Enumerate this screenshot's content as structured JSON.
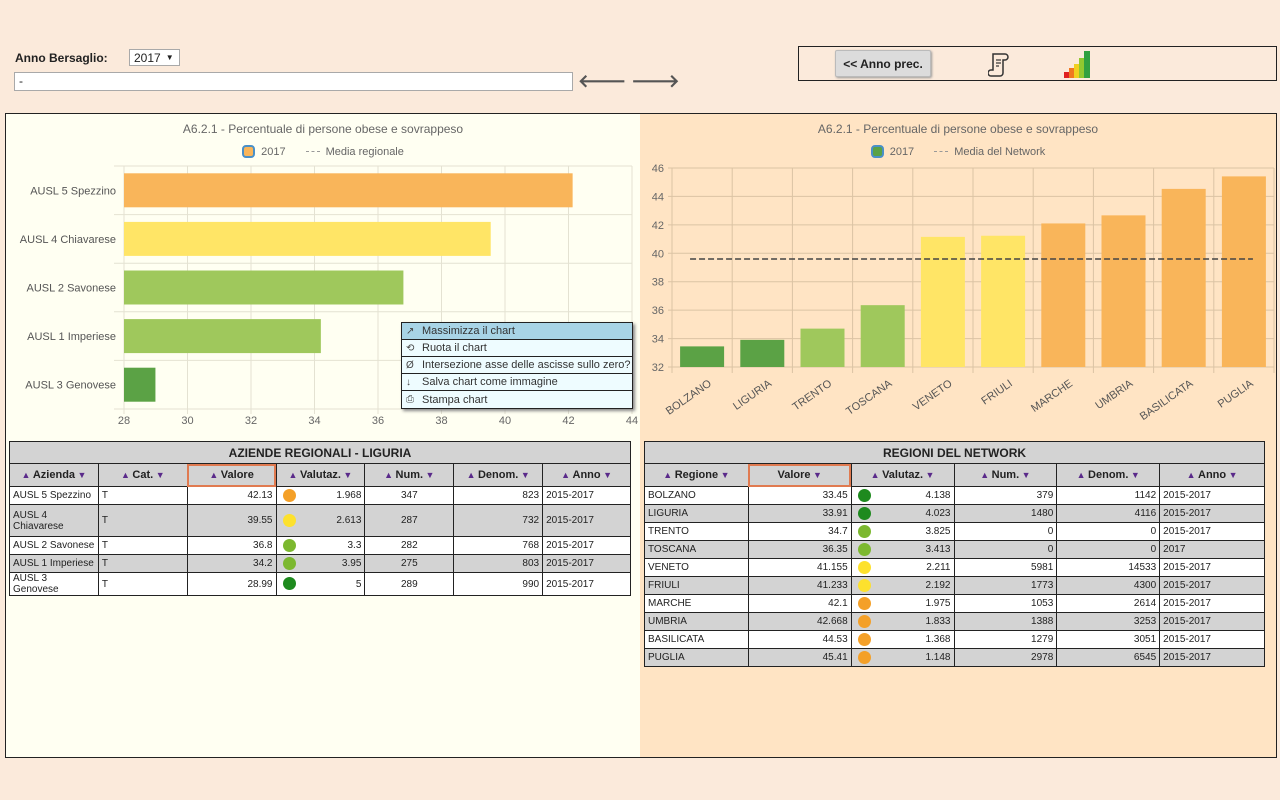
{
  "top_controls": {
    "anno_label": "Anno Bersaglio:",
    "anno_value": "2017",
    "text_field_value": "-",
    "prev_arrow": "🡐",
    "next_arrow": "🡒"
  },
  "toolbar": {
    "prev_year_label": "<< Anno prec.",
    "report_icon": "scroll-report-icon",
    "signal_icon": "signal-bars-icon"
  },
  "colors": {
    "dark_green": "#5ba245",
    "light_green": "#9fc85c",
    "yellow": "#ffe566",
    "orange": "#f9b55a",
    "dot_dark_green": "#1e8a1e",
    "dot_light_green": "#7cb82f",
    "dot_yellow": "#fde12d",
    "dot_orange": "#f4a028"
  },
  "context_menu": {
    "items": [
      {
        "icon": "↗",
        "label": "Massimizza il chart"
      },
      {
        "icon": "⟲",
        "label": "Ruota il chart"
      },
      {
        "icon": "Ø",
        "label": "Intersezione asse delle ascisse sullo zero?"
      },
      {
        "icon": "↓",
        "label": "Salva chart come immagine"
      },
      {
        "icon": "⎙",
        "label": "Stampa chart"
      }
    ]
  },
  "chart_data": [
    {
      "type": "bar",
      "orientation": "horizontal",
      "title": "A6.2.1 - Percentuale di persone obese e sovrappeso",
      "legend": [
        "2017",
        "Media regionale"
      ],
      "categories": [
        "AUSL 5 Spezzino",
        "AUSL 4 Chiavarese",
        "AUSL 2 Savonese",
        "AUSL 1 Imperiese",
        "AUSL 3 Genovese"
      ],
      "values": [
        42.13,
        39.55,
        36.8,
        34.2,
        28.99
      ],
      "bar_colors": [
        "#f9b55a",
        "#ffe566",
        "#9fc85c",
        "#9fc85c",
        "#5ba245"
      ],
      "xlim": [
        28,
        44
      ],
      "xticks": [
        28,
        30,
        32,
        34,
        36,
        38,
        40,
        42,
        44
      ],
      "grid": true
    },
    {
      "type": "bar",
      "orientation": "vertical",
      "title": "A6.2.1 - Percentuale di persone obese e sovrappeso",
      "legend": [
        "2017",
        "Media del Network"
      ],
      "categories": [
        "BOLZANO",
        "LIGURIA",
        "TRENTO",
        "TOSCANA",
        "VENETO",
        "FRIULI",
        "MARCHE",
        "UMBRIA",
        "BASILICATA",
        "PUGLIA"
      ],
      "values": [
        33.45,
        33.91,
        34.7,
        36.35,
        41.155,
        41.233,
        42.1,
        42.668,
        44.53,
        45.41
      ],
      "bar_colors": [
        "#5ba245",
        "#5ba245",
        "#9fc85c",
        "#9fc85c",
        "#ffe566",
        "#ffe566",
        "#f9b55a",
        "#f9b55a",
        "#f9b55a",
        "#f9b55a"
      ],
      "reference_line": 39.6,
      "ylim": [
        32,
        46
      ],
      "yticks": [
        32,
        34,
        36,
        38,
        40,
        42,
        44,
        46
      ],
      "grid": true
    }
  ],
  "left_table": {
    "caption": "AZIENDE REGIONALI - LIGURIA",
    "headers": [
      "Azienda",
      "Cat.",
      "Valore",
      "Valutaz.",
      "Num.",
      "Denom.",
      "Anno"
    ],
    "rows": [
      {
        "name": "AUSL 5 Spezzino",
        "cat": "T",
        "valore": "42.13",
        "dot": "#f4a028",
        "valutaz": "1.968",
        "num": "347",
        "denom": "823",
        "anno": "2015-2017"
      },
      {
        "name": "AUSL 4 Chiavarese",
        "cat": "T",
        "valore": "39.55",
        "dot": "#fde12d",
        "valutaz": "2.613",
        "num": "287",
        "denom": "732",
        "anno": "2015-2017"
      },
      {
        "name": "AUSL 2 Savonese",
        "cat": "T",
        "valore": "36.8",
        "dot": "#7cb82f",
        "valutaz": "3.3",
        "num": "282",
        "denom": "768",
        "anno": "2015-2017"
      },
      {
        "name": "AUSL 1 Imperiese",
        "cat": "T",
        "valore": "34.2",
        "dot": "#7cb82f",
        "valutaz": "3.95",
        "num": "275",
        "denom": "803",
        "anno": "2015-2017"
      },
      {
        "name": "AUSL 3 Genovese",
        "cat": "T",
        "valore": "28.99",
        "dot": "#1e8a1e",
        "valutaz": "5",
        "num": "289",
        "denom": "990",
        "anno": "2015-2017"
      }
    ]
  },
  "right_table": {
    "caption": "REGIONI DEL NETWORK",
    "headers": [
      "Regione",
      "Valore",
      "Valutaz.",
      "Num.",
      "Denom.",
      "Anno"
    ],
    "rows": [
      {
        "name": "BOLZANO",
        "valore": "33.45",
        "dot": "#1e8a1e",
        "valutaz": "4.138",
        "num": "379",
        "denom": "1142",
        "anno": "2015-2017"
      },
      {
        "name": "LIGURIA",
        "valore": "33.91",
        "dot": "#1e8a1e",
        "valutaz": "4.023",
        "num": "1480",
        "denom": "4116",
        "anno": "2015-2017"
      },
      {
        "name": "TRENTO",
        "valore": "34.7",
        "dot": "#7cb82f",
        "valutaz": "3.825",
        "num": "0",
        "denom": "0",
        "anno": "2015-2017"
      },
      {
        "name": "TOSCANA",
        "valore": "36.35",
        "dot": "#7cb82f",
        "valutaz": "3.413",
        "num": "0",
        "denom": "0",
        "anno": "2017"
      },
      {
        "name": "VENETO",
        "valore": "41.155",
        "dot": "#fde12d",
        "valutaz": "2.211",
        "num": "5981",
        "denom": "14533",
        "anno": "2015-2017"
      },
      {
        "name": "FRIULI",
        "valore": "41.233",
        "dot": "#fde12d",
        "valutaz": "2.192",
        "num": "1773",
        "denom": "4300",
        "anno": "2015-2017"
      },
      {
        "name": "MARCHE",
        "valore": "42.1",
        "dot": "#f4a028",
        "valutaz": "1.975",
        "num": "1053",
        "denom": "2614",
        "anno": "2015-2017"
      },
      {
        "name": "UMBRIA",
        "valore": "42.668",
        "dot": "#f4a028",
        "valutaz": "1.833",
        "num": "1388",
        "denom": "3253",
        "anno": "2015-2017"
      },
      {
        "name": "BASILICATA",
        "valore": "44.53",
        "dot": "#f4a028",
        "valutaz": "1.368",
        "num": "1279",
        "denom": "3051",
        "anno": "2015-2017"
      },
      {
        "name": "PUGLIA",
        "valore": "45.41",
        "dot": "#f4a028",
        "valutaz": "1.148",
        "num": "2978",
        "denom": "6545",
        "anno": "2015-2017"
      }
    ]
  }
}
